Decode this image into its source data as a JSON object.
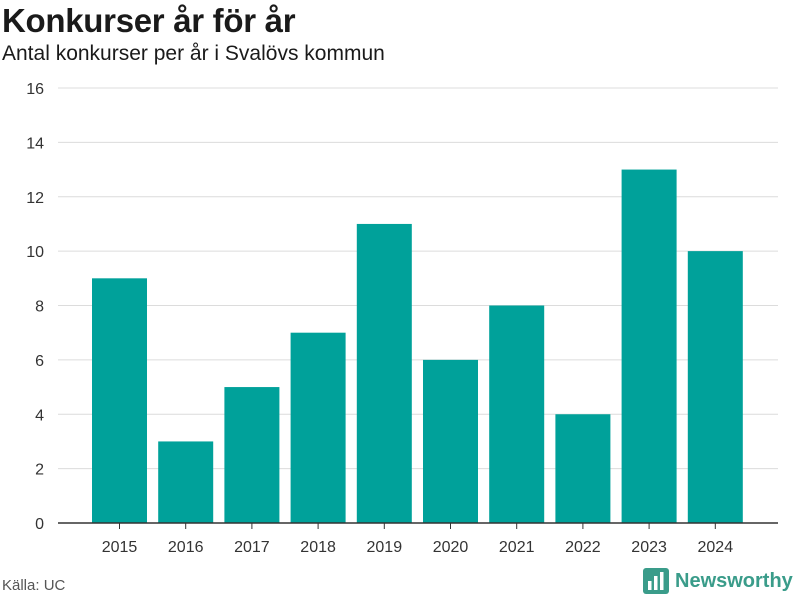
{
  "header": {
    "title": "Konkurser år för år",
    "subtitle": "Antal konkurser per år i Svalövs kommun"
  },
  "footer": {
    "source": "Källa: UC",
    "brand": "Newsworthy",
    "brand_icon": "bar-chart-logo-icon"
  },
  "colors": {
    "bar": "#00a19a",
    "grid": "#dcdcdc",
    "axis": "#333333",
    "brand": "#3a9c8a"
  },
  "chart_data": {
    "type": "bar",
    "categories": [
      "2015",
      "2016",
      "2017",
      "2018",
      "2019",
      "2020",
      "2021",
      "2022",
      "2023",
      "2024"
    ],
    "values": [
      9,
      3,
      5,
      7,
      11,
      6,
      8,
      4,
      13,
      10
    ],
    "title": "Konkurser år för år",
    "subtitle": "Antal konkurser per år i Svalövs kommun",
    "xlabel": "",
    "ylabel": "",
    "ylim": [
      0,
      16
    ],
    "yticks": [
      0,
      2,
      4,
      6,
      8,
      10,
      12,
      14,
      16
    ],
    "grid": true
  }
}
